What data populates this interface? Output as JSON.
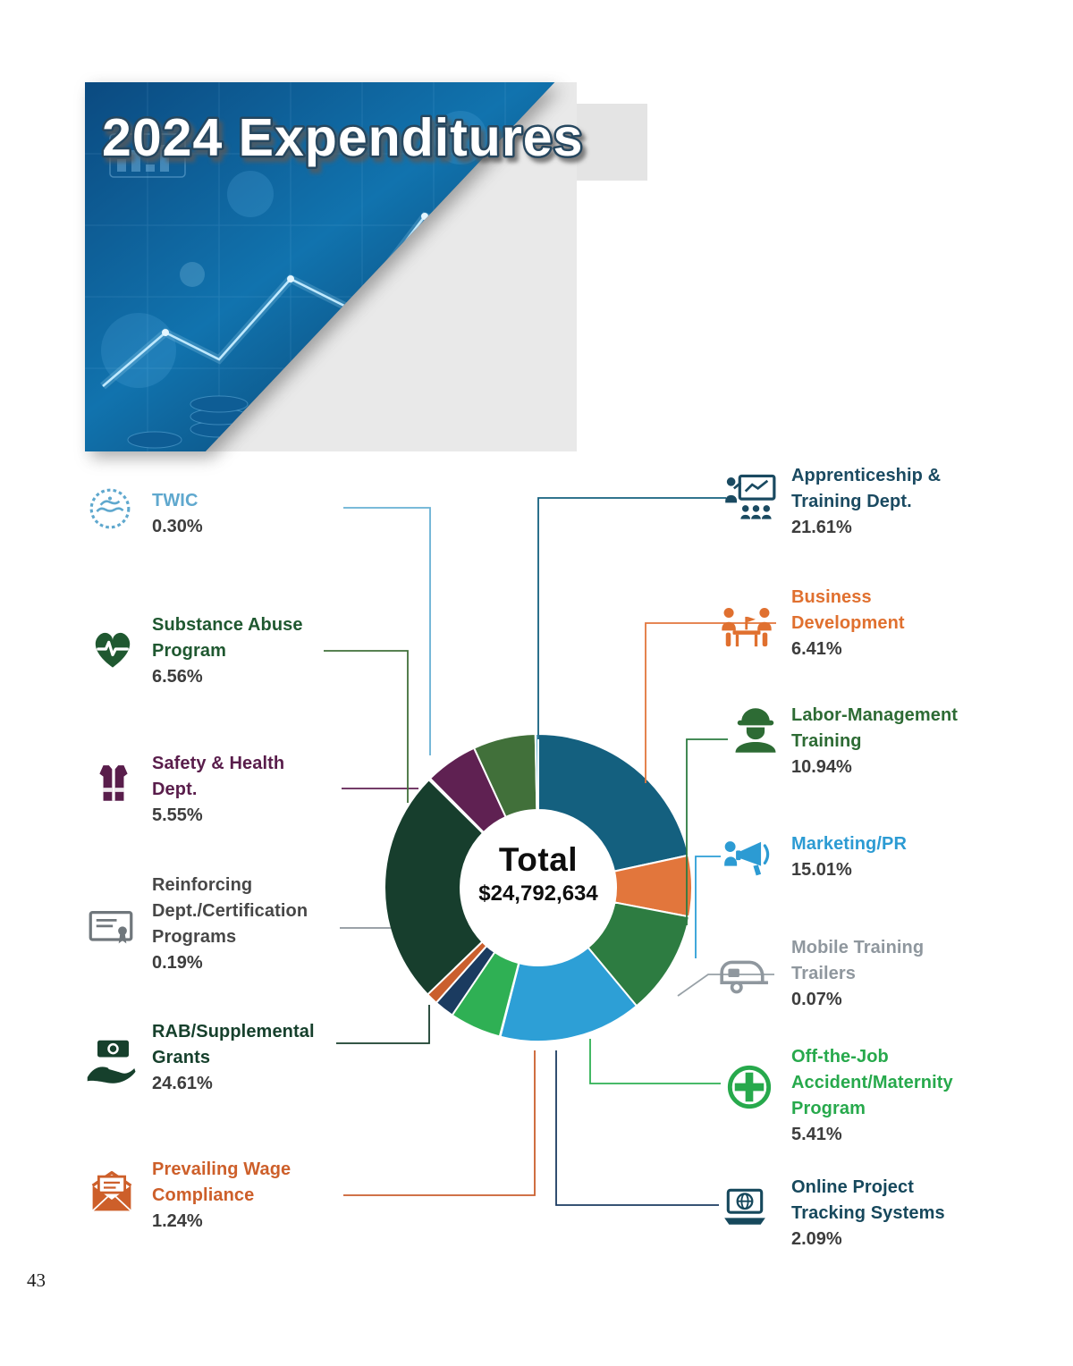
{
  "page": {
    "number": "43"
  },
  "banner": {
    "title": "2024 Expenditures"
  },
  "chart_data": {
    "type": "pie",
    "subtype": "donut",
    "direction": "clockwise",
    "start_angle_deg": 0,
    "center_label": "Total",
    "center_value": "$24,792,634",
    "segments": [
      {
        "key": "apprenticeship-training",
        "label": "Apprenticeship & Training Dept.",
        "label_lines": [
          "Apprenticeship &",
          "Training Dept."
        ],
        "value": 21.61,
        "pct_label": "21.61%",
        "color": "#14607f",
        "label_color": "#1a4a61",
        "icon": "training-presentation-icon",
        "side": "right"
      },
      {
        "key": "business-development",
        "label": "Business Development",
        "label_lines": [
          "Business",
          "Development"
        ],
        "value": 6.41,
        "pct_label": "6.41%",
        "color": "#e2763c",
        "label_color": "#e0702f",
        "icon": "business-meeting-icon",
        "side": "right"
      },
      {
        "key": "labor-management-training",
        "label": "Labor-Management Training",
        "label_lines": [
          "Labor-Management",
          "Training"
        ],
        "value": 10.94,
        "pct_label": "10.94%",
        "color": "#2d7c41",
        "label_color": "#2d6b34",
        "icon": "construction-worker-icon",
        "side": "right"
      },
      {
        "key": "marketing-pr",
        "label": "Marketing/PR",
        "label_lines": [
          "Marketing/PR"
        ],
        "value": 15.01,
        "pct_label": "15.01%",
        "color": "#2d9fd6",
        "label_color": "#2c9bd3",
        "icon": "megaphone-icon",
        "side": "right"
      },
      {
        "key": "mobile-training-trailers",
        "label": "Mobile Training Trailers",
        "label_lines": [
          "Mobile Training",
          "Trailers"
        ],
        "value": 0.07,
        "pct_label": "0.07%",
        "color": "#97a0a6",
        "label_color": "#8f979e",
        "icon": "trailer-icon",
        "side": "right"
      },
      {
        "key": "off-the-job",
        "label": "Off-the-Job Accident/Maternity Program",
        "label_lines": [
          "Off-the-Job",
          "Accident/Maternity",
          "Program"
        ],
        "value": 5.41,
        "pct_label": "5.41%",
        "color": "#2fb054",
        "label_color": "#27a94c",
        "icon": "medical-cross-icon",
        "side": "right"
      },
      {
        "key": "online-project-tracking",
        "label": "Online Project Tracking Systems",
        "label_lines": [
          "Online Project",
          "Tracking Systems"
        ],
        "value": 2.09,
        "pct_label": "2.09%",
        "color": "#1b3b60",
        "label_color": "#16485c",
        "icon": "laptop-globe-icon",
        "side": "right"
      },
      {
        "key": "prevailing-wage",
        "label": "Prevailing Wage Compliance",
        "label_lines": [
          "Prevailing Wage",
          "Compliance"
        ],
        "value": 1.24,
        "pct_label": "1.24%",
        "color": "#ca5f2e",
        "label_color": "#cd5f2a",
        "icon": "envelope-icon",
        "side": "left"
      },
      {
        "key": "rab-supplemental-grants",
        "label": "RAB/Supplemental Grants",
        "label_lines": [
          "RAB/Supplemental",
          "Grants"
        ],
        "value": 24.61,
        "pct_label": "24.61%",
        "color": "#173e2d",
        "label_color": "#16402c",
        "icon": "money-hand-icon",
        "side": "left"
      },
      {
        "key": "reinforcing-certification",
        "label": "Reinforcing Dept./Certification Programs",
        "label_lines": [
          "Reinforcing",
          "Dept./Certification",
          "Programs"
        ],
        "value": 0.19,
        "pct_label": "0.19%",
        "color": "#b9c0c6",
        "label_color": "#474747",
        "icon_color": "#70777c",
        "line_color": "#8d959b",
        "icon": "certificate-icon",
        "side": "left"
      },
      {
        "key": "safety-health",
        "label": "Safety & Health Dept.",
        "label_lines": [
          "Safety & Health",
          "Dept."
        ],
        "value": 5.55,
        "pct_label": "5.55%",
        "color": "#5f2152",
        "label_color": "#591d4b",
        "icon": "safety-vest-icon",
        "side": "left"
      },
      {
        "key": "substance-abuse",
        "label": "Substance Abuse Program",
        "label_lines": [
          "Substance Abuse",
          "Program"
        ],
        "value": 6.56,
        "pct_label": "6.56%",
        "color": "#41703a",
        "label_color": "#1f5830",
        "icon": "heart-pulse-icon",
        "side": "left"
      },
      {
        "key": "twic",
        "label": "TWIC",
        "label_lines": [
          "TWIC"
        ],
        "value": 0.3,
        "pct_label": "0.30%",
        "color": "#68b1d4",
        "label_color": "#5fa8ce",
        "icon": "twic-badge-icon",
        "side": "left"
      }
    ]
  }
}
